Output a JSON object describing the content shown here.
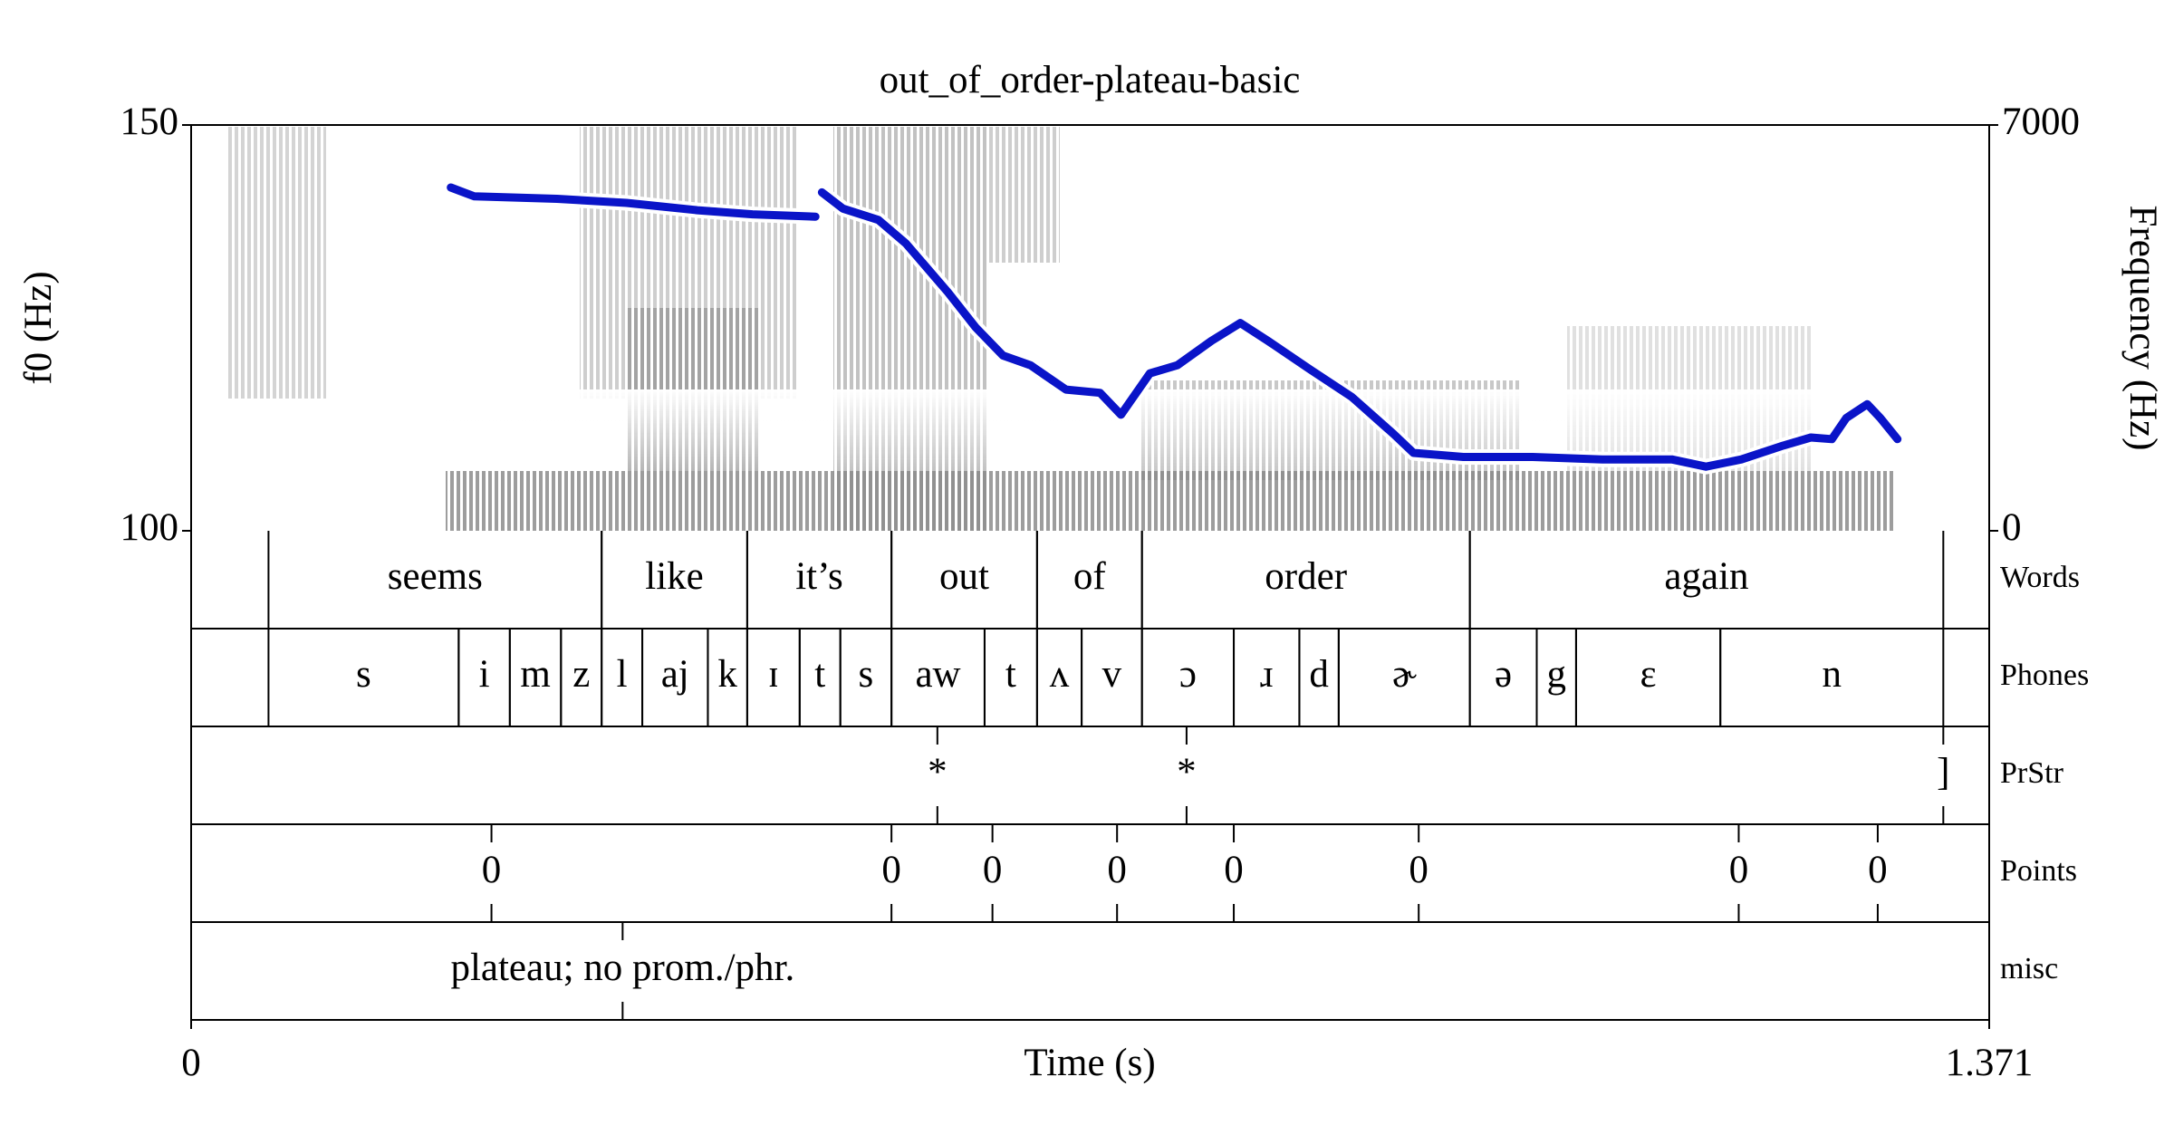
{
  "chart_data": {
    "type": "line",
    "title": "out_of_order-plateau-basic",
    "xlabel": "Time (s)",
    "ylabel": "f0 (Hz)",
    "y2label": "Frequency (Hz)",
    "xlim": [
      0,
      1.371
    ],
    "xticks": [
      0,
      1.371
    ],
    "ylim": [
      100,
      150
    ],
    "yticks": [
      100,
      150
    ],
    "y2lim": [
      0,
      7000
    ],
    "y2ticks": [
      0,
      7000
    ],
    "x": [
      0.198,
      0.216,
      0.279,
      0.332,
      0.386,
      0.428,
      0.476,
      0.478,
      0.481,
      0.497,
      0.524,
      0.545,
      0.577,
      0.598,
      0.619,
      0.64,
      0.667,
      0.693,
      0.709,
      0.731,
      0.752,
      0.778,
      0.8,
      0.821,
      0.853,
      0.885,
      0.917,
      0.932,
      0.97,
      1.023,
      1.076,
      1.129,
      1.155,
      1.182,
      1.214,
      1.235,
      1.251,
      1.262,
      1.278,
      1.288,
      1.301
    ],
    "series": [
      {
        "color": "#0a14c8",
        "values": [
          142.3,
          141.2,
          140.9,
          140.4,
          139.5,
          139.0,
          138.7,
          null,
          141.7,
          139.7,
          138.3,
          135.4,
          129.4,
          125.1,
          121.6,
          120.4,
          117.4,
          117.0,
          114.3,
          119.4,
          120.4,
          123.4,
          125.6,
          123.4,
          119.9,
          116.5,
          111.9,
          109.6,
          109.1,
          109.1,
          108.8,
          108.8,
          107.9,
          108.8,
          110.5,
          111.5,
          111.3,
          113.9,
          115.6,
          113.9,
          111.3
        ]
      }
    ],
    "tiers": [
      {
        "name": "Words",
        "kind": "interval",
        "intervals": [
          {
            "label": "seems",
            "start": 0.059,
            "end": 0.313
          },
          {
            "label": "like",
            "start": 0.313,
            "end": 0.424
          },
          {
            "label": "it’s",
            "start": 0.424,
            "end": 0.534
          },
          {
            "label": "out",
            "start": 0.534,
            "end": 0.645
          },
          {
            "label": "of",
            "start": 0.645,
            "end": 0.725
          },
          {
            "label": "order",
            "start": 0.725,
            "end": 0.975
          },
          {
            "label": "again",
            "start": 0.975,
            "end": 1.336
          }
        ]
      },
      {
        "name": "Phones",
        "kind": "interval",
        "intervals": [
          {
            "label": "s",
            "start": 0.059,
            "end": 0.204
          },
          {
            "label": "i",
            "start": 0.204,
            "end": 0.243
          },
          {
            "label": "m",
            "start": 0.243,
            "end": 0.282
          },
          {
            "label": "z",
            "start": 0.282,
            "end": 0.313
          },
          {
            "label": "l",
            "start": 0.313,
            "end": 0.344
          },
          {
            "label": "aj",
            "start": 0.344,
            "end": 0.394
          },
          {
            "label": "k",
            "start": 0.394,
            "end": 0.424
          },
          {
            "label": "ɪ",
            "start": 0.424,
            "end": 0.464
          },
          {
            "label": "t",
            "start": 0.464,
            "end": 0.495
          },
          {
            "label": "s",
            "start": 0.495,
            "end": 0.534
          },
          {
            "label": "aw",
            "start": 0.534,
            "end": 0.605
          },
          {
            "label": "t",
            "start": 0.605,
            "end": 0.645
          },
          {
            "label": "ʌ",
            "start": 0.645,
            "end": 0.679
          },
          {
            "label": "v",
            "start": 0.679,
            "end": 0.725
          },
          {
            "label": "ɔ",
            "start": 0.725,
            "end": 0.795
          },
          {
            "label": "ɹ",
            "start": 0.795,
            "end": 0.845
          },
          {
            "label": "d",
            "start": 0.845,
            "end": 0.875
          },
          {
            "label": "ɚ",
            "start": 0.875,
            "end": 0.975
          },
          {
            "label": "ə",
            "start": 0.975,
            "end": 1.026
          },
          {
            "label": "g",
            "start": 1.026,
            "end": 1.056
          },
          {
            "label": "ɛ",
            "start": 1.056,
            "end": 1.166
          },
          {
            "label": "n",
            "start": 1.166,
            "end": 1.336
          }
        ]
      },
      {
        "name": "PrStr",
        "kind": "point",
        "points": [
          {
            "label": "*",
            "time": 0.569
          },
          {
            "label": "*",
            "time": 0.759
          },
          {
            "label": "]",
            "time": 1.336
          }
        ]
      },
      {
        "name": "Points",
        "kind": "point",
        "points": [
          {
            "label": "0",
            "time": 0.229
          },
          {
            "label": "0",
            "time": 0.534
          },
          {
            "label": "0",
            "time": 0.611
          },
          {
            "label": "0",
            "time": 0.706
          },
          {
            "label": "0",
            "time": 0.795
          },
          {
            "label": "0",
            "time": 0.936
          },
          {
            "label": "0",
            "time": 1.18
          },
          {
            "label": "0",
            "time": 1.286
          }
        ]
      },
      {
        "name": "misc",
        "kind": "point",
        "points": [
          {
            "label": "plateau; no prom./phr.",
            "time": 0.329
          }
        ]
      }
    ]
  }
}
